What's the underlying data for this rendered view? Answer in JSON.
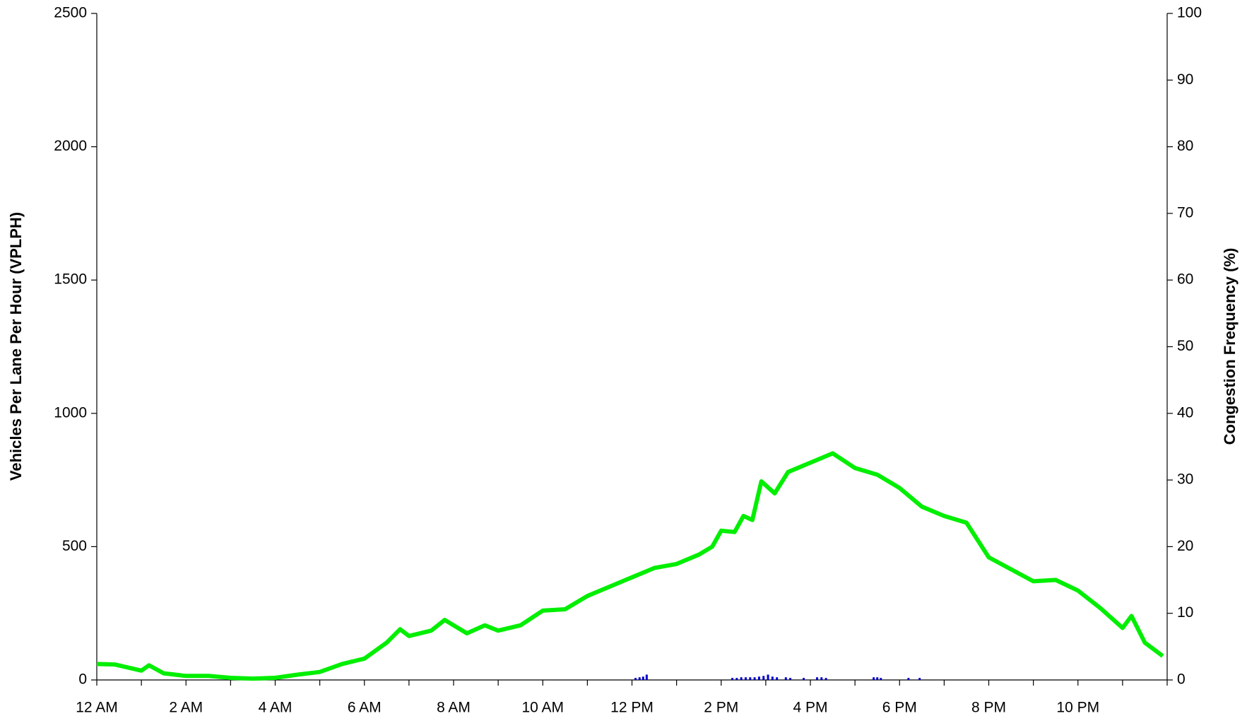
{
  "chart_data": {
    "type": "line",
    "y_label": "Vehicles Per Lane Per Hour (VPLPH)",
    "y2_label": "Congestion Frequency (%)",
    "xlim": [
      0,
      24
    ],
    "xticks": [
      {
        "value": 0,
        "label": "12 AM"
      },
      {
        "value": 2,
        "label": "2 AM"
      },
      {
        "value": 4,
        "label": "4 AM"
      },
      {
        "value": 6,
        "label": "6 AM"
      },
      {
        "value": 8,
        "label": "8 AM"
      },
      {
        "value": 10,
        "label": "10 AM"
      },
      {
        "value": 12,
        "label": "12 PM"
      },
      {
        "value": 14,
        "label": "2 PM"
      },
      {
        "value": 16,
        "label": "4 PM"
      },
      {
        "value": 18,
        "label": "6 PM"
      },
      {
        "value": 20,
        "label": "8 PM"
      },
      {
        "value": 22,
        "label": "10 PM"
      }
    ],
    "xminorticks": [
      1,
      3,
      5,
      7,
      9,
      11,
      13,
      15,
      17,
      19,
      21,
      23,
      24
    ],
    "ylim": [
      0,
      2500
    ],
    "yticks": [
      0,
      500,
      1000,
      1500,
      2000,
      2500
    ],
    "y2lim": [
      0,
      100
    ],
    "y2ticks": [
      0,
      10,
      20,
      30,
      40,
      50,
      60,
      70,
      80,
      90,
      100
    ],
    "grid": false,
    "series": [
      {
        "type": "line",
        "color": "#00ee00",
        "x": [
          0,
          0.4,
          1,
          1.17,
          1.5,
          2,
          2.5,
          3,
          3.5,
          4,
          4.5,
          5,
          5.5,
          6,
          6.5,
          6.8,
          7,
          7.5,
          7.8,
          8.3,
          8.7,
          9,
          9.5,
          10,
          10.5,
          11,
          11.5,
          12,
          12.5,
          13,
          13.5,
          13.8,
          14,
          14.3,
          14.5,
          14.7,
          14.9,
          15.2,
          15.5,
          16,
          16.5,
          17,
          17.5,
          18,
          18.5,
          19,
          19.5,
          20,
          20.5,
          21,
          21.5,
          22,
          22.5,
          23,
          23.2,
          23.5,
          23.9
        ],
        "values": [
          60,
          58,
          35,
          55,
          25,
          15,
          15,
          8,
          5,
          8,
          20,
          30,
          60,
          80,
          140,
          190,
          165,
          185,
          225,
          175,
          205,
          185,
          205,
          260,
          265,
          315,
          350,
          385,
          420,
          435,
          470,
          500,
          560,
          555,
          615,
          600,
          745,
          700,
          780,
          815,
          850,
          795,
          770,
          720,
          650,
          615,
          590,
          460,
          415,
          370,
          375,
          335,
          270,
          195,
          240,
          140,
          90
        ]
      },
      {
        "type": "bar",
        "axis": "y2",
        "color": "#0000cc",
        "x": [
          12.08,
          12.17,
          12.25,
          12.33,
          14.25,
          14.35,
          14.45,
          14.55,
          14.65,
          14.75,
          14.85,
          14.95,
          15.05,
          15.15,
          15.25,
          15.45,
          15.55,
          15.85,
          16.15,
          16.25,
          16.35,
          17.42,
          17.5,
          17.58,
          18.2,
          18.45
        ],
        "values": [
          0.3,
          0.4,
          0.5,
          0.8,
          0.3,
          0.3,
          0.4,
          0.4,
          0.4,
          0.4,
          0.5,
          0.6,
          0.8,
          0.5,
          0.4,
          0.4,
          0.3,
          0.3,
          0.4,
          0.4,
          0.3,
          0.4,
          0.4,
          0.3,
          0.3,
          0.3
        ]
      }
    ]
  }
}
